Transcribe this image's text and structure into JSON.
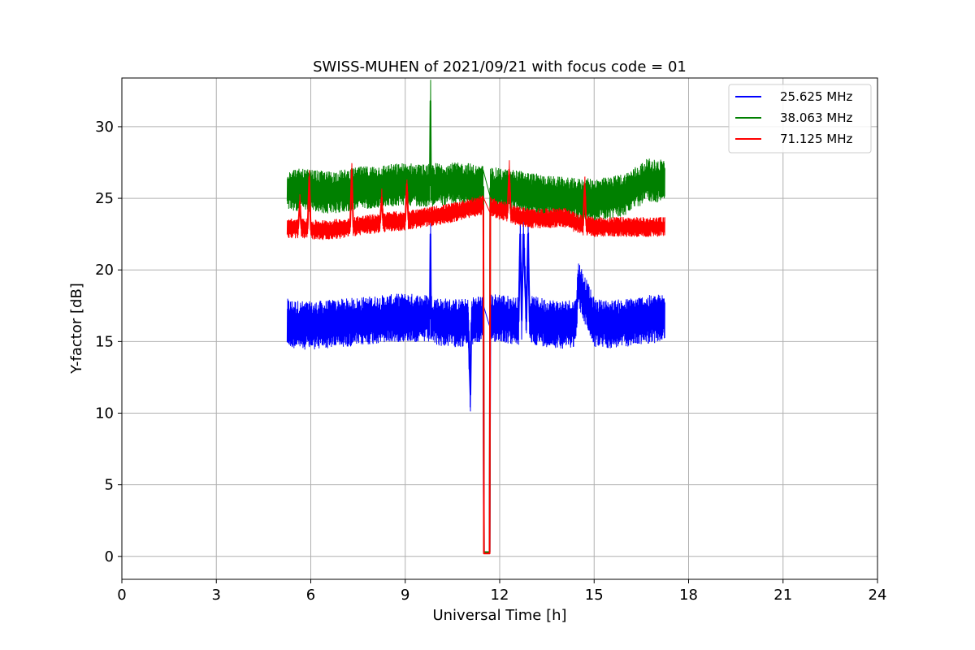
{
  "chart_data": {
    "type": "line",
    "title": "SWISS-MUHEN of 2021/09/21 with focus code = 01",
    "xlabel": "Universal Time [h]",
    "ylabel": "Y-factor [dB]",
    "xlim": [
      0,
      24
    ],
    "ylim": [
      -1.6,
      33.4
    ],
    "xticks": [
      0,
      3,
      6,
      9,
      12,
      15,
      18,
      21,
      24
    ],
    "yticks": [
      0,
      5,
      10,
      15,
      20,
      25,
      30
    ],
    "grid": true,
    "legend_position": "top-right",
    "series": [
      {
        "name": "25.625 MHz",
        "color": "#0000ff",
        "x": [
          5.25,
          5.5,
          6.0,
          6.5,
          7.0,
          7.5,
          8.0,
          8.5,
          9.0,
          9.5,
          9.78,
          9.8,
          9.82,
          10.0,
          10.5,
          11.0,
          11.07,
          11.1,
          11.12,
          11.3,
          11.48,
          11.5,
          11.52,
          11.6,
          11.68,
          11.7,
          11.72,
          12.0,
          12.3,
          12.6,
          12.65,
          12.7,
          12.75,
          12.85,
          12.9,
          12.95,
          13.0,
          13.5,
          14.0,
          14.4,
          14.5,
          15.0,
          15.5,
          16.0,
          16.5,
          17.0,
          17.25
        ],
        "y": [
          16.3,
          16.2,
          16.1,
          16.2,
          16.3,
          16.4,
          16.5,
          16.6,
          16.7,
          16.6,
          16.6,
          22.5,
          16.6,
          16.4,
          16.3,
          16.3,
          11.3,
          16.3,
          16.4,
          16.6,
          16.5,
          0.3,
          0.3,
          0.3,
          0.3,
          16.6,
          16.6,
          16.7,
          16.5,
          16.4,
          22.5,
          16.5,
          22.5,
          16.4,
          22.5,
          16.4,
          16.5,
          16.3,
          16.2,
          16.3,
          19.0,
          16.3,
          16.2,
          16.3,
          16.5,
          16.6,
          16.7
        ],
        "noise_band": 1.7
      },
      {
        "name": "38.063 MHz",
        "color": "#008000",
        "x": [
          5.25,
          5.5,
          6.0,
          6.5,
          7.0,
          7.5,
          8.0,
          8.5,
          9.0,
          9.5,
          9.78,
          9.8,
          9.82,
          10.0,
          10.5,
          11.0,
          11.3,
          11.48,
          11.5,
          11.52,
          11.6,
          11.68,
          11.7,
          11.72,
          12.0,
          12.5,
          13.0,
          13.5,
          14.0,
          14.5,
          15.0,
          15.5,
          16.0,
          16.5,
          16.7,
          17.0,
          17.25
        ],
        "y": [
          25.7,
          25.6,
          25.5,
          25.4,
          25.5,
          25.7,
          25.8,
          25.9,
          26.0,
          25.9,
          25.9,
          31.8,
          25.9,
          26.0,
          26.0,
          26.0,
          25.8,
          25.8,
          0.3,
          0.3,
          0.3,
          0.3,
          25.7,
          25.7,
          25.6,
          25.5,
          25.3,
          25.1,
          25.0,
          24.9,
          24.9,
          25.0,
          25.3,
          26.0,
          26.3,
          26.2,
          26.3
        ],
        "noise_band": 1.5
      },
      {
        "name": "71.125 MHz",
        "color": "#ff0000",
        "x": [
          5.25,
          5.5,
          5.6,
          5.65,
          5.7,
          5.9,
          5.95,
          6.0,
          6.5,
          7.0,
          7.25,
          7.3,
          7.35,
          7.5,
          8.0,
          8.2,
          8.25,
          8.3,
          8.5,
          9.0,
          9.05,
          9.1,
          9.5,
          10.0,
          10.5,
          11.0,
          11.4,
          11.48,
          11.5,
          11.52,
          11.6,
          11.68,
          11.7,
          11.72,
          12.0,
          12.25,
          12.3,
          12.35,
          12.5,
          13.0,
          13.5,
          14.0,
          14.5,
          14.65,
          14.7,
          14.75,
          15.0,
          15.5,
          16.0,
          16.5,
          17.0,
          17.25
        ],
        "y": [
          22.9,
          22.9,
          22.9,
          24.7,
          22.9,
          22.9,
          26.5,
          22.8,
          22.8,
          22.9,
          23.0,
          27.0,
          23.0,
          23.1,
          23.2,
          23.3,
          25.0,
          23.3,
          23.4,
          23.4,
          26.0,
          23.5,
          23.6,
          23.8,
          24.0,
          24.3,
          24.5,
          24.5,
          0.2,
          0.2,
          0.2,
          0.2,
          24.4,
          24.4,
          24.2,
          24.0,
          27.0,
          23.9,
          23.8,
          23.6,
          23.6,
          23.7,
          23.2,
          23.1,
          26.0,
          23.1,
          23.0,
          23.0,
          23.0,
          23.0,
          23.0,
          23.0
        ],
        "noise_band": 0.7
      }
    ]
  }
}
